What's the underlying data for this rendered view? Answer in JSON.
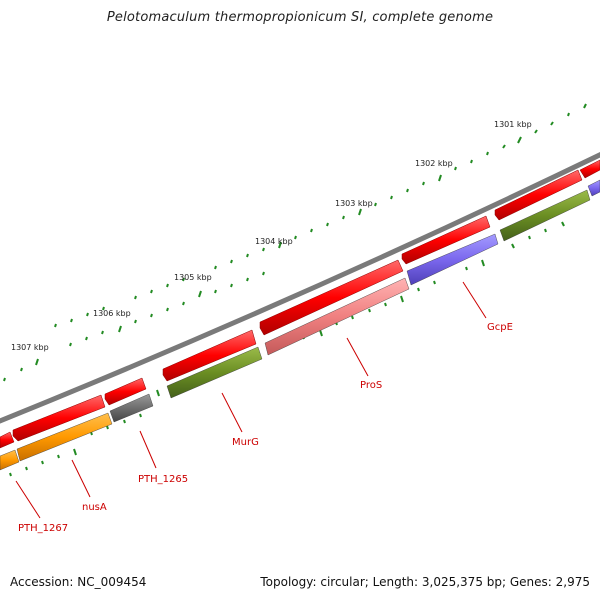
{
  "title": "Pelotomaculum thermopropionicum SI, complete genome",
  "footer": {
    "accession": "Accession: NC_009454",
    "summary": "Topology: circular; Length: 3,025,375 bp; Genes: 2,975"
  },
  "colors": {
    "backbone": "#808080",
    "forward_cds": "#ff0000",
    "reverse_cds": "#ff0000",
    "cog_olive": "#6b8e23",
    "cog_orange": "#ff9900",
    "cog_gray": "#6e6e6e",
    "cog_pink": "#f08080",
    "cog_blue": "#7b68ee",
    "ticks": "#228b22",
    "label": "#cc0000"
  },
  "scale_labels": [
    "1301 kbp",
    "1302 kbp",
    "1303 kbp",
    "1304 kbp",
    "1305 kbp",
    "1306 kbp",
    "1307 kbp"
  ],
  "gene_labels": [
    "GcpE",
    "ProS",
    "MurG",
    "PTH_1265",
    "nusA",
    "PTH_1267"
  ]
}
